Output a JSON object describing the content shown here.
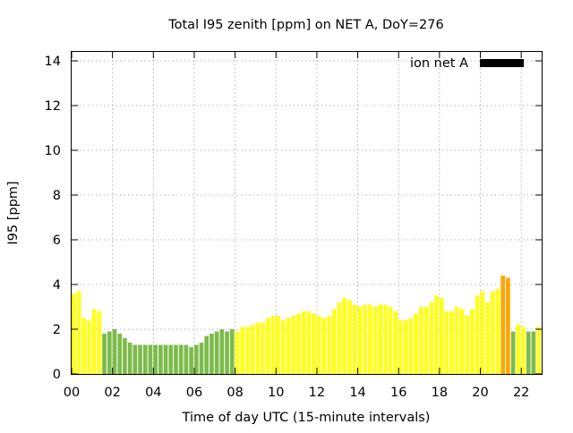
{
  "chart_data": {
    "type": "bar",
    "title": "Total I95 zenith [ppm] on NET A, DoY=276",
    "xlabel": "Time of day UTC (15-minute intervals)",
    "ylabel": "I95 [ppm]",
    "ylim": [
      0,
      14.4
    ],
    "xlim": [
      0,
      23
    ],
    "xticks": [
      "00",
      "02",
      "04",
      "06",
      "08",
      "10",
      "12",
      "14",
      "16",
      "18",
      "20",
      "22"
    ],
    "xtick_hours": [
      0,
      2,
      4,
      6,
      8,
      10,
      12,
      14,
      16,
      18,
      20,
      22
    ],
    "yticks": [
      0,
      2,
      4,
      6,
      8,
      10,
      12,
      14
    ],
    "grid": true,
    "legend": {
      "position": "top-right",
      "label": "ion net A",
      "color": "#000000"
    },
    "bar_interval_hours": 0.25,
    "colors": {
      "green": "#7cbb4a",
      "yellow": "#ffff1a",
      "orange": "#ffa500"
    },
    "values": [
      3.6,
      3.7,
      2.5,
      2.4,
      2.9,
      2.8,
      1.8,
      1.9,
      2.0,
      1.8,
      1.6,
      1.4,
      1.3,
      1.3,
      1.3,
      1.3,
      1.3,
      1.3,
      1.3,
      1.3,
      1.3,
      1.3,
      1.3,
      1.2,
      1.3,
      1.4,
      1.7,
      1.8,
      1.9,
      2.0,
      1.9,
      2.0,
      1.9,
      2.1,
      2.1,
      2.2,
      2.3,
      2.3,
      2.5,
      2.6,
      2.6,
      2.4,
      2.5,
      2.6,
      2.7,
      2.8,
      2.8,
      2.7,
      2.6,
      2.5,
      2.6,
      2.9,
      3.2,
      3.4,
      3.3,
      3.1,
      3.0,
      3.1,
      3.1,
      3.0,
      3.1,
      3.1,
      3.0,
      2.8,
      2.4,
      2.4,
      2.5,
      2.7,
      3.0,
      3.0,
      3.2,
      3.5,
      3.4,
      2.8,
      2.8,
      3.0,
      2.9,
      2.6,
      2.9,
      3.5,
      3.7,
      3.2,
      3.7,
      3.8,
      4.4,
      4.3,
      1.9,
      2.2,
      2.1,
      1.9,
      1.9,
      2.1,
      1.6
    ],
    "value_colors": [
      "yellow",
      "yellow",
      "yellow",
      "yellow",
      "yellow",
      "yellow",
      "green",
      "green",
      "green",
      "green",
      "green",
      "green",
      "green",
      "green",
      "green",
      "green",
      "green",
      "green",
      "green",
      "green",
      "green",
      "green",
      "green",
      "green",
      "green",
      "green",
      "green",
      "green",
      "green",
      "green",
      "green",
      "green",
      "yellow",
      "yellow",
      "yellow",
      "yellow",
      "yellow",
      "yellow",
      "yellow",
      "yellow",
      "yellow",
      "yellow",
      "yellow",
      "yellow",
      "yellow",
      "yellow",
      "yellow",
      "yellow",
      "yellow",
      "yellow",
      "yellow",
      "yellow",
      "yellow",
      "yellow",
      "yellow",
      "yellow",
      "yellow",
      "yellow",
      "yellow",
      "yellow",
      "yellow",
      "yellow",
      "yellow",
      "yellow",
      "yellow",
      "yellow",
      "yellow",
      "yellow",
      "yellow",
      "yellow",
      "yellow",
      "yellow",
      "yellow",
      "yellow",
      "yellow",
      "yellow",
      "yellow",
      "yellow",
      "yellow",
      "yellow",
      "yellow",
      "yellow",
      "yellow",
      "yellow",
      "orange",
      "orange",
      "green",
      "yellow",
      "yellow",
      "green",
      "green",
      "yellow",
      "green"
    ]
  }
}
